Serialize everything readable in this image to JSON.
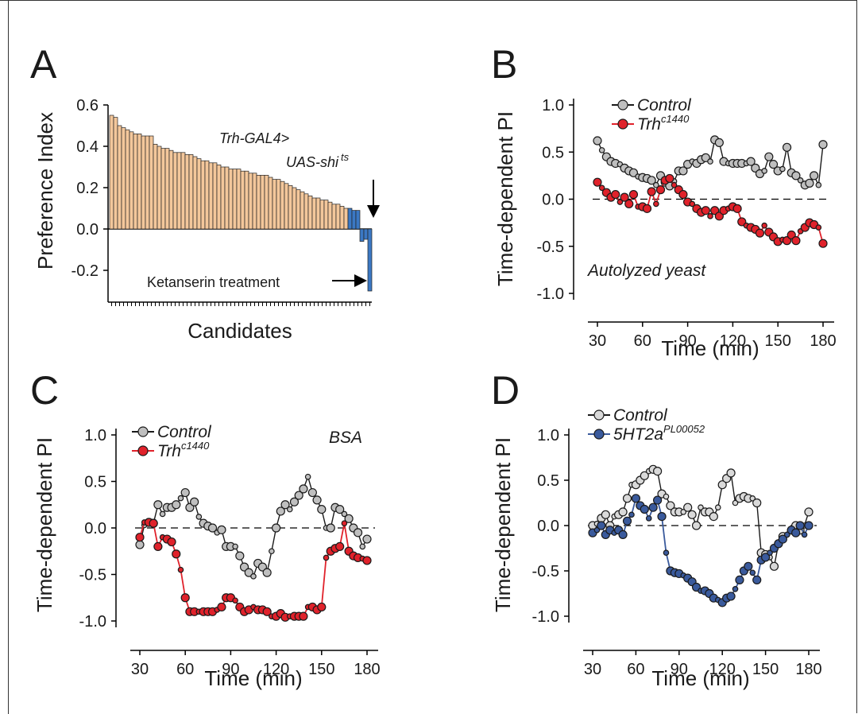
{
  "panels": {
    "A": {
      "letter": "A"
    },
    "B": {
      "letter": "B"
    },
    "C": {
      "letter": "C"
    },
    "D": {
      "letter": "D"
    }
  },
  "chart_data": [
    {
      "panel": "A",
      "type": "bar",
      "ylabel": "Preference Index",
      "xlabel": "Candidates",
      "ylim": [
        -0.35,
        0.6
      ],
      "yticks": [
        "0.6",
        "0.4",
        "0.2",
        "0.0",
        "-0.2"
      ],
      "ytick_values": [
        0.6,
        0.4,
        0.2,
        0.0,
        -0.2
      ],
      "values": [
        0.55,
        0.54,
        0.5,
        0.49,
        0.48,
        0.47,
        0.46,
        0.46,
        0.45,
        0.45,
        0.45,
        0.41,
        0.4,
        0.39,
        0.39,
        0.38,
        0.37,
        0.37,
        0.37,
        0.36,
        0.36,
        0.35,
        0.34,
        0.33,
        0.33,
        0.32,
        0.32,
        0.31,
        0.3,
        0.3,
        0.29,
        0.29,
        0.29,
        0.28,
        0.28,
        0.27,
        0.27,
        0.26,
        0.26,
        0.26,
        0.25,
        0.24,
        0.24,
        0.23,
        0.22,
        0.21,
        0.2,
        0.19,
        0.18,
        0.17,
        0.16,
        0.15,
        0.15,
        0.14,
        0.14,
        0.13,
        0.12,
        0.12,
        0.11,
        0.1,
        0.1,
        0.09,
        0.09,
        -0.06,
        -0.05,
        -0.3
      ],
      "colors": {
        "positive": "#f3c79b",
        "treatment": "#3b78c4"
      },
      "highlight_from_index": 60,
      "annotations": {
        "genotype_line1": "Trh-GAL4>",
        "genotype_line2": "UAS-shi",
        "genotype_sup": "ts",
        "treatment": "Ketanserin treatment"
      }
    },
    {
      "panel": "B",
      "type": "line",
      "xlabel": "Time (min)",
      "ylabel": "Time-dependent PI",
      "xlim": [
        25,
        185
      ],
      "ylim": [
        -1.1,
        1.1
      ],
      "xticks": [
        30,
        60,
        90,
        120,
        150,
        180
      ],
      "yticks": [
        1.0,
        0.5,
        0.0,
        -0.5,
        -1.0
      ],
      "ytick_labels": [
        "1.0",
        "0.5",
        "0.0",
        "-0.5",
        "-1.0"
      ],
      "annotation": "Autolyzed yeast",
      "series": [
        {
          "name": "Control",
          "color": "#bfbfbf",
          "line": "#1a1a1a",
          "x": [
            30,
            33,
            36,
            39,
            42,
            45,
            48,
            51,
            54,
            57,
            60,
            63,
            66,
            69,
            72,
            75,
            78,
            81,
            84,
            87,
            90,
            93,
            96,
            99,
            102,
            105,
            108,
            111,
            114,
            117,
            120,
            123,
            126,
            129,
            132,
            135,
            138,
            141,
            144,
            147,
            150,
            153,
            156,
            159,
            162,
            165,
            168,
            171,
            174,
            177,
            180
          ],
          "y": [
            0.62,
            0.52,
            0.45,
            0.4,
            0.38,
            0.37,
            0.33,
            0.3,
            0.28,
            0.24,
            0.23,
            0.22,
            0.2,
            0.15,
            0.25,
            0.18,
            0.14,
            0.19,
            0.3,
            0.3,
            0.37,
            0.4,
            0.38,
            0.42,
            0.44,
            0.4,
            0.63,
            0.6,
            0.4,
            0.38,
            0.38,
            0.38,
            0.38,
            0.38,
            0.4,
            0.33,
            0.27,
            0.3,
            0.45,
            0.37,
            0.3,
            0.32,
            0.55,
            0.28,
            0.25,
            0.2,
            0.15,
            0.17,
            0.25,
            0.15,
            0.58
          ]
        },
        {
          "name": "Trh",
          "name_sup": "c1440",
          "color": "#e0222b",
          "line": "#e0222b",
          "x": [
            30,
            33,
            36,
            39,
            42,
            45,
            48,
            51,
            54,
            57,
            60,
            63,
            66,
            69,
            72,
            75,
            78,
            81,
            84,
            87,
            90,
            93,
            96,
            99,
            102,
            105,
            108,
            111,
            114,
            117,
            120,
            123,
            126,
            129,
            132,
            135,
            138,
            141,
            144,
            147,
            150,
            153,
            156,
            159,
            162,
            165,
            168,
            171,
            174,
            177,
            180
          ],
          "y": [
            0.18,
            0.12,
            0.07,
            0.02,
            0.05,
            -0.03,
            0.02,
            -0.05,
            0.05,
            -0.08,
            -0.08,
            -0.1,
            0.08,
            -0.05,
            0.1,
            0.2,
            0.22,
            0.15,
            0.1,
            0.05,
            -0.03,
            -0.05,
            -0.1,
            -0.14,
            -0.12,
            -0.18,
            -0.12,
            -0.18,
            -0.12,
            -0.1,
            -0.08,
            -0.1,
            -0.24,
            -0.28,
            -0.3,
            -0.32,
            -0.36,
            -0.28,
            -0.35,
            -0.4,
            -0.45,
            -0.43,
            -0.44,
            -0.38,
            -0.44,
            -0.34,
            -0.3,
            -0.25,
            -0.27,
            -0.3,
            -0.47
          ]
        }
      ]
    },
    {
      "panel": "C",
      "type": "line",
      "xlabel": "Time (min)",
      "ylabel": "Time-dependent PI",
      "xlim": [
        25,
        185
      ],
      "ylim": [
        -1.1,
        1.1
      ],
      "xticks": [
        30,
        60,
        90,
        120,
        150,
        180
      ],
      "yticks": [
        1.0,
        0.5,
        0.0,
        -0.5,
        -1.0
      ],
      "ytick_labels": [
        "1.0",
        "0.5",
        "0.0",
        "-0.5",
        "-1.0"
      ],
      "annotation": "BSA",
      "series": [
        {
          "name": "Control",
          "color": "#bfbfbf",
          "line": "#1a1a1a",
          "x": [
            30,
            33,
            36,
            39,
            42,
            45,
            48,
            51,
            54,
            57,
            60,
            63,
            66,
            69,
            72,
            75,
            78,
            81,
            84,
            87,
            90,
            93,
            96,
            99,
            102,
            105,
            108,
            111,
            114,
            117,
            120,
            123,
            126,
            129,
            132,
            135,
            138,
            141,
            144,
            147,
            150,
            153,
            156,
            159,
            162,
            165,
            168,
            171,
            174,
            177,
            180
          ],
          "y": [
            -0.18,
            0.03,
            0.06,
            0.05,
            0.25,
            0.15,
            0.22,
            0.22,
            0.25,
            0.32,
            0.38,
            0.22,
            0.28,
            0.12,
            0.05,
            0.02,
            0.0,
            -0.05,
            -0.02,
            -0.2,
            -0.2,
            -0.2,
            -0.3,
            -0.42,
            -0.48,
            -0.52,
            -0.38,
            -0.42,
            -0.48,
            -0.25,
            0.0,
            0.18,
            0.25,
            0.2,
            0.28,
            0.35,
            0.42,
            0.55,
            0.38,
            0.3,
            0.2,
            0.0,
            0.0,
            0.22,
            0.2,
            0.15,
            0.1,
            0.0,
            -0.05,
            -0.2,
            -0.12
          ]
        },
        {
          "name": "Trh",
          "name_sup": "c1440",
          "color": "#e0222b",
          "line": "#e0222b",
          "x": [
            30,
            33,
            36,
            39,
            42,
            45,
            48,
            51,
            54,
            57,
            60,
            63,
            66,
            69,
            72,
            75,
            78,
            81,
            84,
            87,
            90,
            93,
            96,
            99,
            102,
            105,
            108,
            111,
            114,
            117,
            120,
            123,
            126,
            129,
            132,
            135,
            138,
            141,
            144,
            147,
            150,
            153,
            156,
            159,
            162,
            165,
            168,
            171,
            174,
            177,
            180
          ],
          "y": [
            -0.1,
            0.06,
            0.06,
            0.05,
            -0.2,
            -0.1,
            -0.12,
            -0.15,
            -0.28,
            -0.45,
            -0.75,
            -0.9,
            -0.9,
            -0.9,
            -0.9,
            -0.9,
            -0.9,
            -0.88,
            -0.85,
            -0.75,
            -0.75,
            -0.78,
            -0.85,
            -0.9,
            -0.88,
            -0.85,
            -0.88,
            -0.88,
            -0.9,
            -0.95,
            -0.95,
            -0.92,
            -0.96,
            -0.95,
            -0.95,
            -0.95,
            -0.95,
            -0.85,
            -0.85,
            -0.88,
            -0.85,
            -0.32,
            -0.25,
            -0.22,
            -0.2,
            0.05,
            -0.25,
            -0.3,
            -0.32,
            -0.33,
            -0.35
          ]
        }
      ]
    },
    {
      "panel": "D",
      "type": "line",
      "xlabel": "Time (min)",
      "ylabel": "Time-dependent PI",
      "xlim": [
        25,
        185
      ],
      "ylim": [
        -1.1,
        1.1
      ],
      "xticks": [
        30,
        60,
        90,
        120,
        150,
        180
      ],
      "yticks": [
        1.0,
        0.5,
        0.0,
        -0.5,
        -1.0
      ],
      "ytick_labels": [
        "1.0",
        "0.5",
        "0.0",
        "-0.5",
        "-1.0"
      ],
      "annotation": "",
      "series": [
        {
          "name": "Control",
          "color": "#d9d9d9",
          "line": "#1a1a1a",
          "x": [
            30,
            33,
            36,
            39,
            42,
            45,
            48,
            51,
            54,
            57,
            60,
            63,
            66,
            69,
            72,
            75,
            78,
            81,
            84,
            87,
            90,
            93,
            96,
            99,
            102,
            105,
            108,
            111,
            114,
            117,
            120,
            123,
            126,
            129,
            132,
            135,
            138,
            141,
            144,
            147,
            150,
            153,
            156,
            159,
            162,
            165,
            168,
            171,
            174,
            177,
            180
          ],
          "y": [
            0.0,
            0.02,
            0.08,
            0.12,
            0.0,
            0.1,
            0.12,
            0.15,
            0.3,
            0.45,
            0.45,
            0.5,
            0.55,
            0.6,
            0.62,
            0.6,
            0.35,
            0.32,
            0.22,
            0.15,
            0.15,
            0.15,
            0.2,
            0.12,
            0.0,
            0.2,
            0.15,
            0.15,
            0.1,
            0.2,
            0.45,
            0.52,
            0.58,
            0.25,
            0.3,
            0.32,
            0.3,
            0.3,
            0.25,
            -0.3,
            -0.32,
            -0.35,
            -0.45,
            -0.2,
            -0.12,
            -0.1,
            -0.05,
            0.0,
            -0.05,
            0.0,
            0.15
          ]
        },
        {
          "name": "5HT2a",
          "name_sup": "PL00052",
          "color": "#3a5a9c",
          "line": "#3a5a9c",
          "x": [
            30,
            33,
            36,
            39,
            42,
            45,
            48,
            51,
            54,
            57,
            60,
            63,
            66,
            69,
            72,
            75,
            78,
            81,
            84,
            87,
            90,
            93,
            96,
            99,
            102,
            105,
            108,
            111,
            114,
            117,
            120,
            123,
            126,
            129,
            132,
            135,
            138,
            141,
            144,
            147,
            150,
            153,
            156,
            159,
            162,
            165,
            168,
            171,
            174,
            177,
            180
          ],
          "y": [
            -0.08,
            -0.05,
            0.0,
            -0.1,
            -0.05,
            -0.08,
            -0.05,
            -0.1,
            0.05,
            0.12,
            0.3,
            0.22,
            0.18,
            0.08,
            0.2,
            0.28,
            0.1,
            -0.3,
            -0.5,
            -0.52,
            -0.53,
            -0.55,
            -0.58,
            -0.62,
            -0.68,
            -0.72,
            -0.72,
            -0.75,
            -0.8,
            -0.82,
            -0.85,
            -0.8,
            -0.78,
            -0.7,
            -0.6,
            -0.5,
            -0.45,
            -0.52,
            -0.6,
            -0.38,
            -0.35,
            -0.3,
            -0.25,
            -0.2,
            -0.15,
            -0.1,
            -0.05,
            -0.08,
            0.0,
            -0.1,
            0.0
          ]
        }
      ]
    }
  ]
}
